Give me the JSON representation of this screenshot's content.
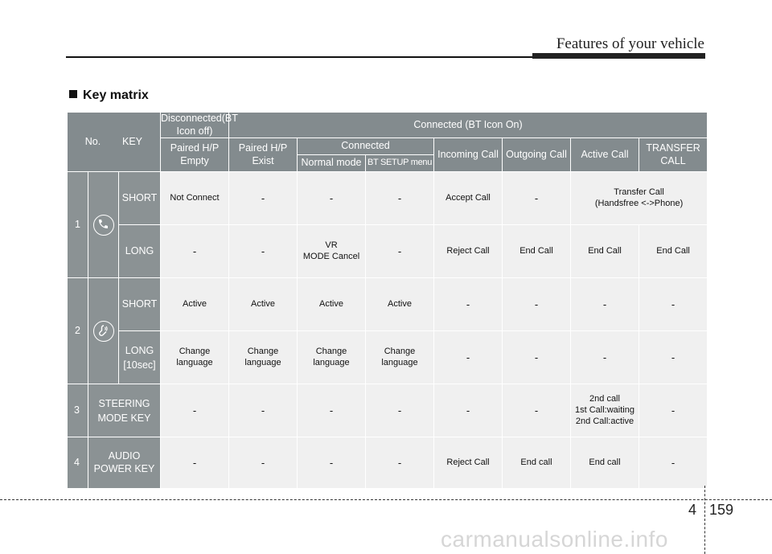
{
  "header": {
    "title": "Features of your vehicle"
  },
  "section": {
    "title": "Key matrix"
  },
  "table": {
    "col_no": "No.",
    "col_key": "KEY",
    "group_disconnected": "Disconnected(BT Icon off)",
    "group_connected": "Connected (BT Icon On)",
    "sub_connected": "Connected",
    "col_paired_empty": "Paired H/P\nEmpty",
    "col_paired_exist": "Paired H/P\nExist",
    "col_normal_mode": "Normal mode",
    "col_bt_setup": "BT SETUP menu",
    "col_incoming": "Incoming Call",
    "col_outgoing": "Outgoing Call",
    "col_active": "Active Call",
    "col_transfer": "TRANSFER\nCALL",
    "rows": [
      {
        "no": "1",
        "icon": "phone-icon",
        "short_label": "SHORT",
        "short_cells": [
          "Not Connect",
          "-",
          "-",
          "-",
          "Accept Call",
          "-",
          "Transfer Call\n(Handsfree <->Phone)"
        ],
        "long_label": "LONG",
        "long_cells": [
          "-",
          "-",
          "VR\nMODE Cancel",
          "-",
          "Reject Call",
          "End Call",
          "End Call",
          "End Call"
        ]
      },
      {
        "no": "2",
        "icon": "voice-recognition-icon",
        "short_label": "SHORT",
        "short_cells": [
          "Active",
          "Active",
          "Active",
          "Active",
          "-",
          "-",
          "-",
          "-"
        ],
        "long_label": "LONG\n[10sec]",
        "long_cells": [
          "Change\nlanguage",
          "Change\nlanguage",
          "Change\nlanguage",
          "Change\nlanguage",
          "-",
          "-",
          "-",
          "-"
        ]
      },
      {
        "no": "3",
        "label": "STEERING\nMODE KEY",
        "cells": [
          "-",
          "-",
          "-",
          "-",
          "-",
          "-",
          "2nd call\n1st Call:waiting\n2nd Call:active",
          "-"
        ]
      },
      {
        "no": "4",
        "label": "AUDIO\nPOWER KEY",
        "cells": [
          "-",
          "-",
          "-",
          "-",
          "Reject Call",
          "End call",
          "End call",
          "-"
        ]
      }
    ]
  },
  "footer": {
    "chapter": "4",
    "page": "159"
  },
  "watermark": {
    "text": "carmanualsonline.info"
  },
  "colors": {
    "header_bg": "#838b8e",
    "row_bg": "#f0f0f0"
  }
}
